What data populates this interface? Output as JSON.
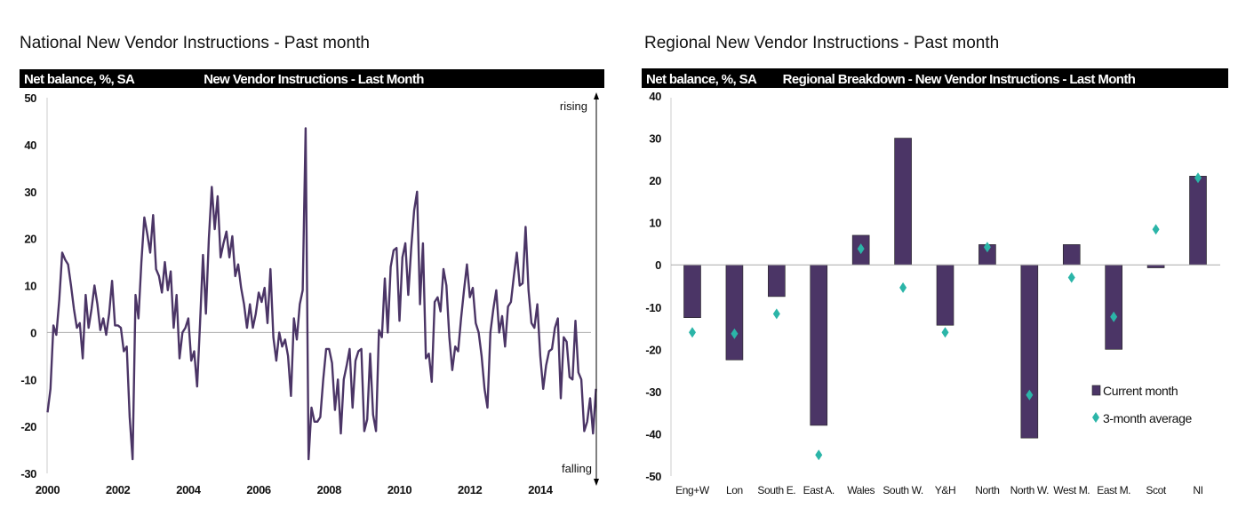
{
  "chart_data": [
    {
      "type": "line",
      "page_title": "National New Vendor Instructions - Past month",
      "header_left": "Net balance, %, SA",
      "title": "New Vendor Instructions - Last Month",
      "ylim": [
        -30,
        50
      ],
      "yticks": [
        50,
        40,
        30,
        20,
        10,
        0,
        -10,
        -20,
        -30
      ],
      "xlim": [
        2000,
        2015.7
      ],
      "xticks": [
        2000,
        2002,
        2004,
        2006,
        2008,
        2010,
        2012,
        2014
      ],
      "annotation_top": "rising",
      "annotation_bottom": "falling",
      "color": "#4b3566",
      "start_year": 2000,
      "step_years": 0.0833,
      "series": [
        {
          "name": "Net balance",
          "values": [
            -17,
            -12,
            1.5,
            -0.5,
            7,
            17,
            15.5,
            14.5,
            10,
            5,
            1,
            2,
            -5.5,
            8,
            1,
            5,
            10,
            6,
            0.5,
            3,
            -0.5,
            4,
            11,
            1.5,
            1.5,
            1,
            -4,
            -3,
            -18,
            -27,
            8,
            3,
            15,
            24.5,
            21,
            17,
            25,
            13.5,
            12,
            8.5,
            15,
            9,
            13,
            1,
            8,
            -5.5,
            0,
            1,
            3,
            -6,
            -4,
            -11.5,
            2,
            16.5,
            4,
            20,
            31,
            22,
            29,
            16,
            19,
            21.5,
            16,
            20.5,
            12,
            14.5,
            9.5,
            6,
            1,
            6,
            1,
            4,
            8.5,
            6.5,
            9.5,
            2,
            13.5,
            -1,
            -6,
            0,
            -3,
            -1.5,
            -5,
            -13.5,
            3,
            -1.5,
            6,
            9,
            43.5,
            -27,
            -16,
            -19,
            -19,
            -18,
            -10,
            -3.5,
            -3.5,
            -6.5,
            -16.5,
            -10,
            -21.5,
            -10,
            -7,
            -3.5,
            -16,
            -6,
            -4,
            -3.5,
            -21,
            -18.5,
            -4.5,
            -17.5,
            -21,
            0.5,
            -1,
            11.5,
            0,
            14,
            17.5,
            18,
            2.5,
            16,
            19,
            8,
            18,
            26,
            30,
            6,
            19,
            -5.5,
            -4.5,
            -10.5,
            6.5,
            7.5,
            4.5,
            13.5,
            10,
            -1,
            -8,
            -3,
            -4,
            3,
            9,
            14.5,
            7.5,
            9.5,
            2,
            0,
            -5,
            -12,
            -16,
            0,
            5,
            9,
            0,
            3.5,
            -3,
            5.5,
            6.5,
            12,
            17,
            10,
            10.5,
            22.5,
            9,
            2,
            1,
            6,
            -5,
            -12,
            -7,
            -4,
            -3.5,
            1,
            3,
            -14,
            -1,
            -2,
            -9.5,
            -10,
            2.5,
            -8.5,
            -10,
            -21,
            -19,
            -14,
            -21.5,
            -12
          ]
        }
      ]
    },
    {
      "type": "bar",
      "page_title": "Regional New Vendor Instructions - Past month",
      "header_left": "Net balance, %, SA",
      "title": "Regional Breakdown - New Vendor Instructions - Last Month",
      "ylim": [
        -50,
        40
      ],
      "yticks": [
        40,
        30,
        20,
        10,
        0,
        -10,
        -20,
        -30,
        -40,
        -50
      ],
      "categories": [
        "Eng+W",
        "Lon",
        "South E.",
        "East A.",
        "Wales",
        "South W.",
        "Y&H",
        "North",
        "North W.",
        "West M.",
        "East M.",
        "Scot",
        "NI"
      ],
      "series": [
        {
          "name": "Current month",
          "color": "#4b3566",
          "values": [
            -12.5,
            -22.5,
            -7.5,
            -38,
            7,
            30,
            -14.3,
            4.8,
            -41,
            4.8,
            -20,
            -0.7,
            21
          ]
        },
        {
          "name": "3-month average",
          "color": "#2bb5a8",
          "values": [
            -16,
            -16.3,
            -11.6,
            -45,
            3.8,
            -5.4,
            -16,
            4.2,
            -30.8,
            -3,
            -12.3,
            8.4,
            20.6
          ]
        }
      ],
      "legend": "bottom-right"
    }
  ]
}
